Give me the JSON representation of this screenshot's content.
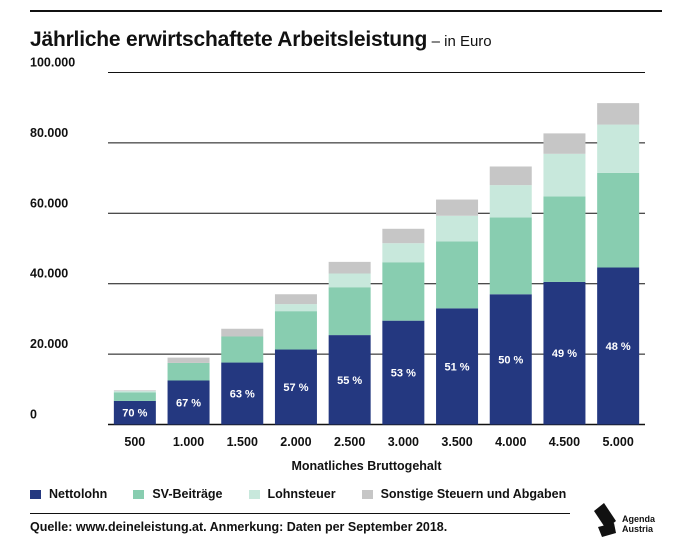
{
  "header": {
    "title": "Jährliche erwirtschaftete Arbeitsleistung",
    "subtitle": "– in Euro"
  },
  "chart_data": {
    "type": "bar",
    "stacked": true,
    "title": "Jährliche erwirtschaftete Arbeitsleistung",
    "subtitle": "– in Euro",
    "xlabel": "Monatliches Bruttogehalt",
    "ylabel": "",
    "ylim": [
      0,
      100000
    ],
    "yticks": [
      "0",
      "20.000",
      "40.000",
      "60.000",
      "80.000",
      "100.000"
    ],
    "grid": true,
    "legend_position": "bottom",
    "categories": [
      "500",
      "1.000",
      "1.500",
      "2.000",
      "2.500",
      "3.000",
      "3.500",
      "4.000",
      "4.500",
      "5.000"
    ],
    "series": [
      {
        "name": "Nettolohn",
        "color": "#243880",
        "values": [
          6700,
          12500,
          17600,
          21300,
          25400,
          29500,
          33000,
          37000,
          40500,
          44600
        ]
      },
      {
        "name": "SV-Beiträge",
        "color": "#88cdb0",
        "values": [
          2400,
          5000,
          7400,
          10900,
          13600,
          16600,
          19000,
          21800,
          24300,
          26900
        ]
      },
      {
        "name": "Lohnsteuer",
        "color": "#c8e8dc",
        "values": [
          400,
          0,
          0,
          2000,
          3900,
          5400,
          7300,
          9200,
          12100,
          13700
        ]
      },
      {
        "name": "Sonstige Steuern und Abgaben",
        "color": "#c6c6c6",
        "values": [
          200,
          1500,
          2200,
          2800,
          3300,
          4100,
          4600,
          5300,
          5800,
          6100
        ]
      }
    ],
    "data_labels": [
      "70 %",
      "67 %",
      "63 %",
      "57 %",
      "55 %",
      "53 %",
      "51 %",
      "50 %",
      "49 %",
      "48 %"
    ]
  },
  "legend": {
    "items": [
      {
        "label": "Nettolohn",
        "color": "#243880"
      },
      {
        "label": "SV-Beiträge",
        "color": "#88cdb0"
      },
      {
        "label": "Lohnsteuer",
        "color": "#c8e8dc"
      },
      {
        "label": "Sonstige Steuern und Abgaben",
        "color": "#c6c6c6"
      }
    ]
  },
  "footer": {
    "source": "Quelle: www.deineleistung.at. Anmerkung: Daten per September 2018.",
    "logo_text_line1": "Agenda",
    "logo_text_line2": "Austria"
  }
}
